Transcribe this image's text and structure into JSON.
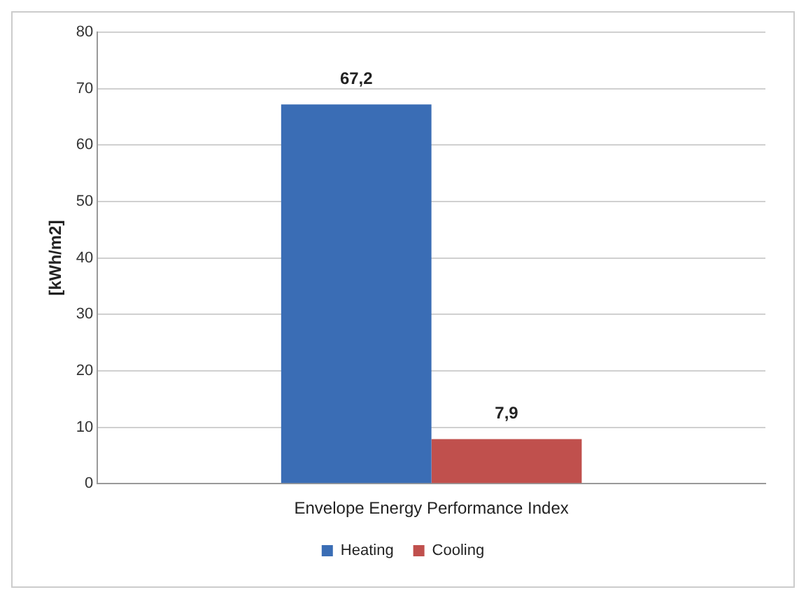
{
  "chart_data": {
    "type": "bar",
    "ylabel": "[kWh/m2]",
    "categories": [
      "Envelope Energy Performance Index"
    ],
    "series": [
      {
        "name": "Heating",
        "color": "#3a6db5",
        "values": [
          67.2
        ],
        "value_labels": [
          "67,2"
        ]
      },
      {
        "name": "Cooling",
        "color": "#c0504d",
        "values": [
          7.9
        ],
        "value_labels": [
          "7,9"
        ]
      }
    ],
    "ylim": [
      0,
      80
    ],
    "yticks": [
      0,
      10,
      20,
      30,
      40,
      50,
      60,
      70,
      80
    ],
    "grid": "y",
    "legend": "bottom"
  }
}
